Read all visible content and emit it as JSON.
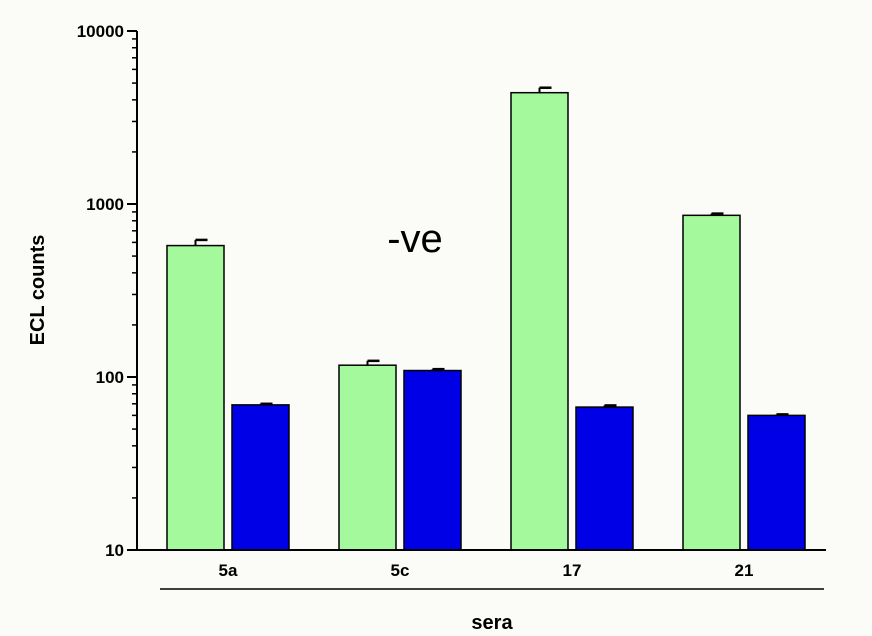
{
  "chart_data": {
    "type": "bar",
    "xlabel": "sera",
    "ylabel": "ECL counts",
    "yscale": "log",
    "ylim": [
      10,
      10000
    ],
    "yticks": [
      "10",
      "100",
      "1000",
      "10000"
    ],
    "categories": [
      "5a",
      "5c",
      "17",
      "21"
    ],
    "series": [
      {
        "values": [
          575,
          117,
          4400,
          860
        ],
        "errors": [
          45,
          7,
          300,
          20
        ],
        "color": "#a4f99c"
      },
      {
        "values": [
          69,
          109,
          67,
          60
        ],
        "errors": [
          1,
          2,
          1.5,
          0.8
        ],
        "color": "#0000e6"
      }
    ],
    "annotations": [
      {
        "text": "-ve"
      }
    ],
    "grid": false,
    "legend": "none"
  }
}
